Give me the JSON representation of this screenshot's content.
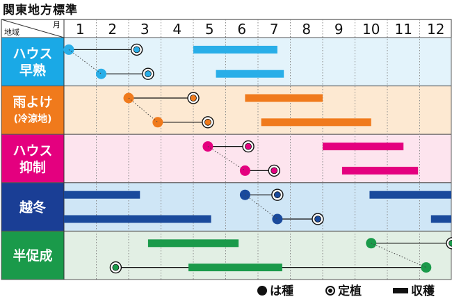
{
  "title": "関東地方標準",
  "header": {
    "region_label": "地域",
    "month_label": "月"
  },
  "months": [
    "1",
    "2",
    "3",
    "4",
    "5",
    "6",
    "7",
    "8",
    "9",
    "10",
    "11",
    "12"
  ],
  "legend": {
    "sowing": "は種",
    "planting": "定植",
    "harvest": "収穫"
  },
  "colors": {
    "ink": "#111111",
    "header_bg": "#ffffff",
    "grid": "#888888"
  },
  "regions": [
    {
      "key": "house-early",
      "lines": [
        "ハウス",
        "早熟"
      ],
      "label_bg": "#1aa9e6",
      "row_bg": "#e3f3fb",
      "color": "#29aee8",
      "schedules": [
        {
          "sow": 1.15,
          "plant": 3.25,
          "harvest": [
            [
              5.0,
              7.6
            ]
          ]
        },
        {
          "sow": 2.15,
          "plant": 3.6,
          "harvest": [
            [
              5.7,
              7.8
            ]
          ]
        }
      ]
    },
    {
      "key": "rain-shelter",
      "lines": [
        "雨よけ",
        "(冷涼地)"
      ],
      "label_bg": "#f07a1c",
      "row_bg": "#fde9d2",
      "color": "#f07a1c",
      "schedules": [
        {
          "sow": 3.0,
          "plant": 5.0,
          "harvest": [
            [
              6.6,
              9.0
            ]
          ]
        },
        {
          "sow": 3.9,
          "plant": 5.45,
          "harvest": [
            [
              7.1,
              10.5
            ]
          ]
        }
      ]
    },
    {
      "key": "house-retard",
      "lines": [
        "ハウス",
        "抑制"
      ],
      "label_bg": "#e4007f",
      "row_bg": "#fde4ee",
      "color": "#e4007f",
      "schedules": [
        {
          "sow": 5.45,
          "plant": 6.7,
          "harvest": [
            [
              9.0,
              11.5
            ]
          ]
        },
        {
          "sow": 6.6,
          "plant": 7.5,
          "harvest": [
            [
              9.6,
              11.95
            ]
          ]
        }
      ]
    },
    {
      "key": "overwinter",
      "lines": [
        "越冬"
      ],
      "label_bg": "#1a3e95",
      "row_bg": "#cfe6f6",
      "color": "#1a4a9c",
      "schedules": [
        {
          "sow": 6.6,
          "plant": 7.6,
          "harvest": [
            [
              1.0,
              3.35
            ],
            [
              10.45,
              13.0
            ]
          ]
        },
        {
          "sow": 7.6,
          "plant": 8.85,
          "harvest": [
            [
              1.0,
              5.55
            ],
            [
              12.35,
              13.0
            ]
          ]
        }
      ]
    },
    {
      "key": "half-forcing",
      "lines": [
        "半促成"
      ],
      "label_bg": "#1a9a4a",
      "row_bg": "#e2efe4",
      "color": "#1a9a4a",
      "schedules": [
        {
          "sow": 10.5,
          "plant": 13.0,
          "harvest": [
            [
              3.6,
              6.4
            ]
          ]
        },
        {
          "sow": 12.2,
          "plant": 2.6,
          "harvest": [
            [
              4.85,
              7.75
            ]
          ]
        }
      ]
    }
  ]
}
